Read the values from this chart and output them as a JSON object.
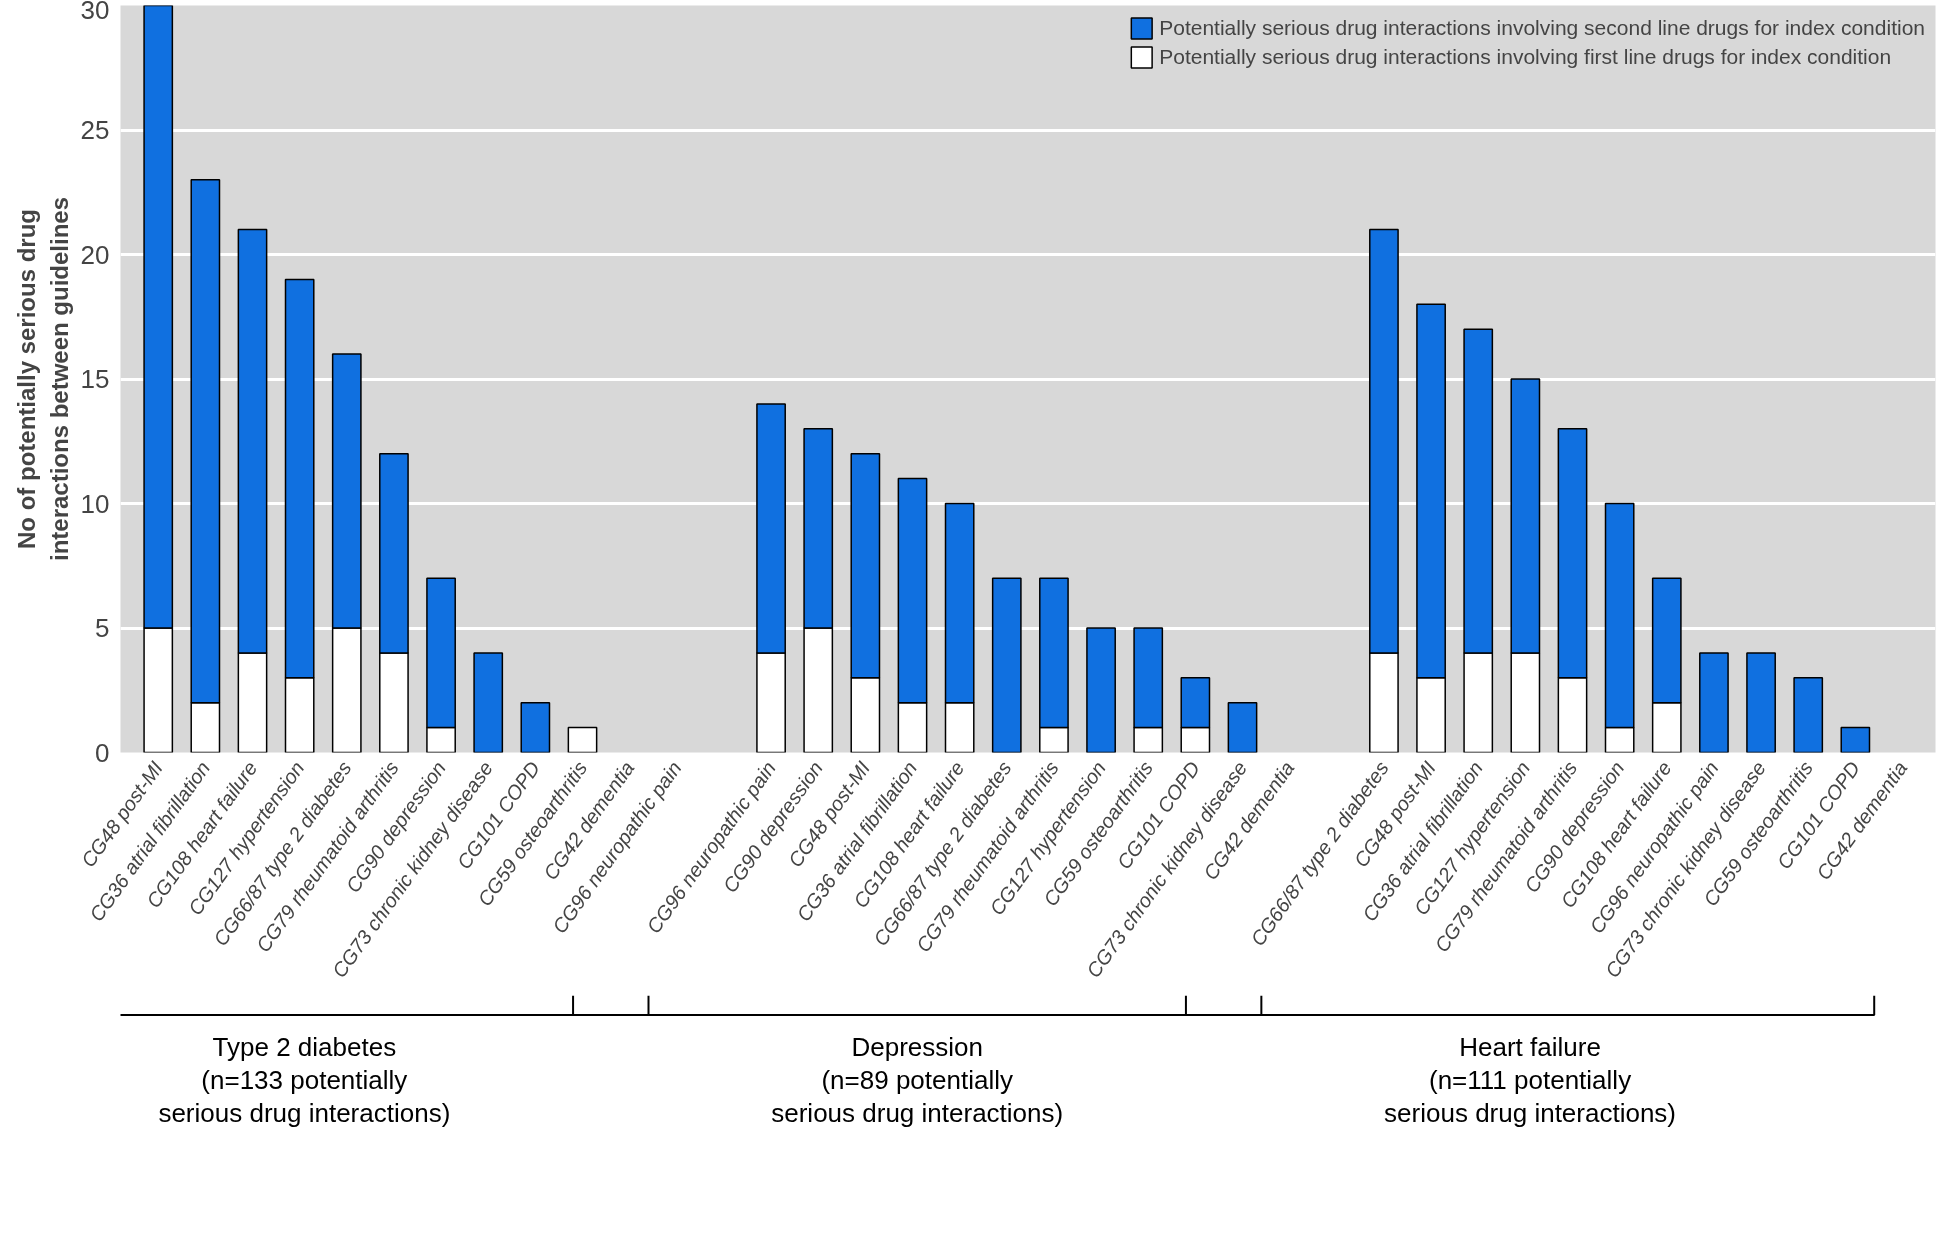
{
  "chart_data": {
    "type": "bar",
    "stacked": true,
    "ylabel": "No of potentially serious drug\ninteractions between guidelines",
    "categories": [
      "CG48 post-MI",
      "CG36 atrial fibrillation",
      "CG108 heart failure",
      "CG127 hypertension",
      "CG66/87 type 2 diabetes",
      "CG79 rheumatoid arthritis",
      "CG90 depression",
      "CG73 chronic kidney disease",
      "CG101 COPD",
      "CG59 osteoarthritis",
      "CG42 dementia",
      "CG96 neuropathic pain",
      null,
      "CG96 neuropathic pain",
      "CG90 depression",
      "CG48 post-MI",
      "CG36 atrial fibrillation",
      "CG108 heart failure",
      "CG66/87 type 2 diabetes",
      "CG79 rheumatoid arthritis",
      "CG127 hypertension",
      "CG59 osteoarthritis",
      "CG101 COPD",
      "CG73 chronic kidney disease",
      "CG42 dementia",
      null,
      "CG66/87 type 2 diabetes",
      "CG48 post-MI",
      "CG36 atrial fibrillation",
      "CG127 hypertension",
      "CG79 rheumatoid arthritis",
      "CG90 depression",
      "CG108 heart failure",
      "CG96 neuropathic pain",
      "CG73 chronic kidney disease",
      "CG59 osteoarthritis",
      "CG101 COPD",
      "CG42 dementia"
    ],
    "series": [
      {
        "name": "Potentially serious drug interactions involving first line drugs for index condition",
        "color": "#ffffff",
        "values": [
          5,
          2,
          4,
          3,
          5,
          4,
          1,
          0,
          0,
          1,
          0,
          0,
          null,
          4,
          5,
          3,
          2,
          2,
          0,
          1,
          0,
          1,
          1,
          0,
          0,
          null,
          4,
          3,
          4,
          4,
          3,
          1,
          2,
          0,
          0,
          0,
          0,
          0
        ]
      },
      {
        "name": "Potentially serious drug interactions involving second line drugs for index condition",
        "color": "#1070e0",
        "values": [
          25,
          21,
          17,
          16,
          11,
          8,
          6,
          4,
          2,
          0,
          0,
          0,
          null,
          10,
          8,
          9,
          9,
          8,
          7,
          6,
          5,
          4,
          2,
          2,
          0,
          null,
          17,
          15,
          13,
          11,
          10,
          9,
          5,
          4,
          4,
          3,
          1,
          0
        ]
      }
    ],
    "ylim": [
      0,
      30
    ],
    "yticks": [
      0,
      5,
      10,
      15,
      20,
      25,
      30
    ],
    "grid": "y",
    "legend": "top right",
    "annotations": [
      "Type 2 diabetes\n(n=133 potentially\nserious drug interactions)",
      "Depression\n(n=89 potentially\nserious drug interactions)",
      "Heart failure\n(n=111 potentially\nserious drug interactions)"
    ]
  }
}
